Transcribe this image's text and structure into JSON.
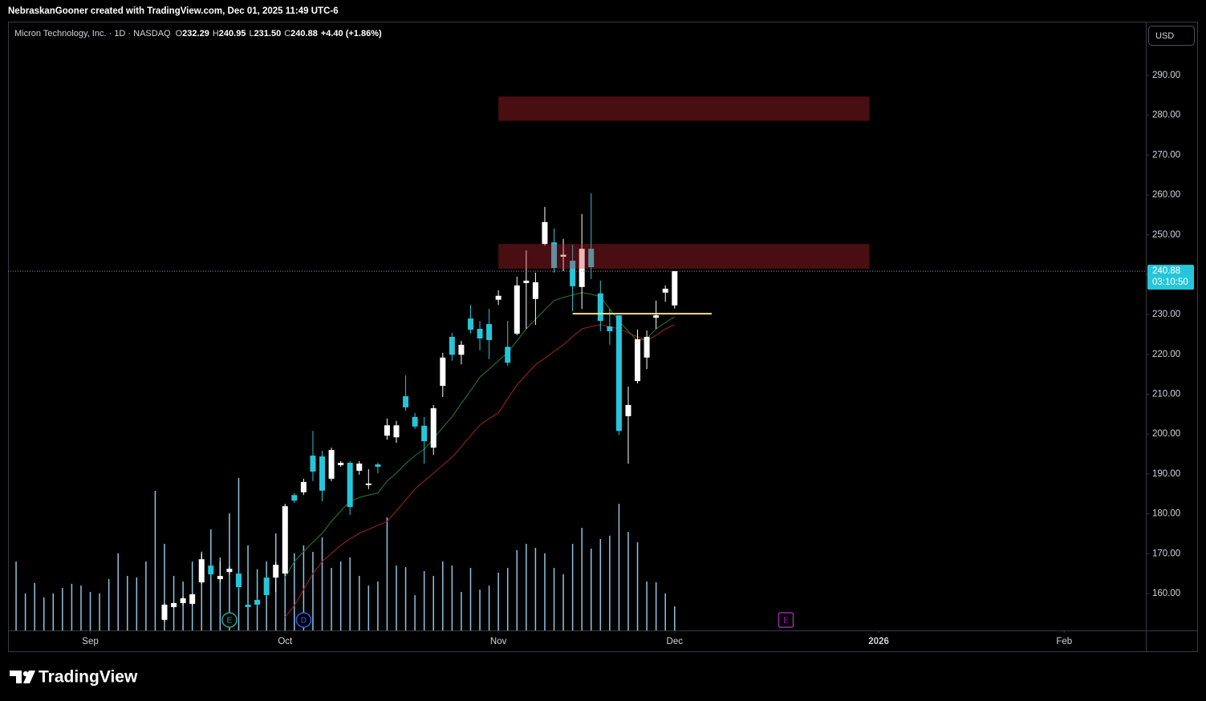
{
  "header": {
    "text": "NebraskanGooner created with TradingView.com, Dec 01, 2025 11:49 UTC-6"
  },
  "footer": {
    "brand": "TradingView"
  },
  "chart_data": {
    "type": "candlestick",
    "legend": {
      "name": "Micron Technology, Inc. · 1D · NASDAQ",
      "fields": [
        {
          "key": "O",
          "text": "232.29"
        },
        {
          "key": "H",
          "text": "240.95"
        },
        {
          "key": "L",
          "text": "231.50"
        },
        {
          "key": "C",
          "text": "240.88"
        }
      ],
      "change": "+4.40 (+1.86%)"
    },
    "currency": "USD",
    "up_color": "#ffffff",
    "down_color": "#26c6da",
    "xlim": [
      -0.87,
      121.8
    ],
    "xticks": [
      {
        "value": 8,
        "label": "Sep"
      },
      {
        "value": 29,
        "label": "Oct"
      },
      {
        "value": 52,
        "label": "Nov"
      },
      {
        "value": 71,
        "label": "Dec"
      },
      {
        "value": 93,
        "label": "2026"
      },
      {
        "value": 113,
        "label": "Feb"
      }
    ],
    "ylim": [
      150.74,
      303.28
    ],
    "yticks": [
      {
        "value": 160,
        "label": "160.00"
      },
      {
        "value": 170,
        "label": "170.00"
      },
      {
        "value": 180,
        "label": "180.00"
      },
      {
        "value": 190,
        "label": "190.00"
      },
      {
        "value": 200,
        "label": "200.00"
      },
      {
        "value": 210,
        "label": "210.00"
      },
      {
        "value": 220,
        "label": "220.00"
      },
      {
        "value": 230,
        "label": "230.00"
      },
      {
        "value": 240,
        "label": "240.00"
      },
      {
        "value": 250,
        "label": "250.00"
      },
      {
        "value": 260,
        "label": "260.00"
      },
      {
        "value": 270,
        "label": "270.00"
      },
      {
        "value": 280,
        "label": "280.00"
      },
      {
        "value": 290,
        "label": "290.00"
      }
    ],
    "grid": false,
    "open": [
      null,
      null,
      null,
      null,
      null,
      null,
      null,
      null,
      null,
      null,
      null,
      null,
      null,
      null,
      null,
      null,
      153.4,
      156.6,
      157.6,
      157.4,
      162.8,
      167.0,
      163.6,
      165.4,
      165.0,
      157.2,
      158.4,
      164.0,
      164.0,
      165.0,
      184.7,
      185.4,
      194.6,
      194.4,
      188.8,
      192.2,
      192.8,
      190.8,
      187.2,
      192.4,
      199.6,
      199.2,
      209.5,
      204.3,
      202.1,
      196.6,
      212.1,
      224.4,
      219.9,
      229.0,
      226.4,
      227.6,
      233.7,
      221.9,
      225.2,
      237.9,
      233.9,
      247.7,
      248.1,
      244.5,
      243.5,
      236.9,
      246.5,
      235.3,
      227.0,
      229.8,
      204.5,
      213.3,
      219.2,
      229.2,
      235.5,
      232.29
    ],
    "high": [
      null,
      null,
      null,
      null,
      null,
      null,
      null,
      null,
      null,
      null,
      null,
      null,
      null,
      null,
      null,
      null,
      157.6,
      157.8,
      159.2,
      160.0,
      170.5,
      168.0,
      168.0,
      166.8,
      165.6,
      157.6,
      159.0,
      165.0,
      168.0,
      182.5,
      185.2,
      188.8,
      200.8,
      195.8,
      196.6,
      193.2,
      193.2,
      193.2,
      191.2,
      192.8,
      203.9,
      203.3,
      214.7,
      205.3,
      204.3,
      207.3,
      220.4,
      225.4,
      223.4,
      232.4,
      228.4,
      231.4,
      236.1,
      228.4,
      239.5,
      246.1,
      240.5,
      257.0,
      251.6,
      249.0,
      247.5,
      255.2,
      260.4,
      238.5,
      231.4,
      229.8,
      211.9,
      226.2,
      226.0,
      233.5,
      237.3,
      240.95
    ],
    "low": [
      null,
      null,
      null,
      null,
      null,
      null,
      null,
      null,
      null,
      null,
      null,
      null,
      null,
      null,
      null,
      null,
      152.9,
      156.4,
      157.0,
      157.0,
      162.4,
      163.6,
      162.8,
      164.8,
      161.0,
      156.2,
      156.8,
      159.0,
      160.4,
      164.4,
      182.7,
      184.7,
      188.2,
      183.1,
      188.2,
      191.8,
      179.7,
      189.8,
      186.2,
      190.2,
      198.6,
      197.8,
      205.9,
      201.3,
      192.6,
      194.8,
      209.3,
      218.4,
      217.5,
      225.2,
      221.0,
      218.8,
      232.4,
      217.1,
      224.8,
      226.4,
      227.4,
      247.3,
      240.5,
      240.9,
      230.8,
      231.4,
      238.9,
      225.8,
      222.4,
      199.8,
      192.6,
      212.7,
      216.3,
      226.4,
      233.2,
      231.5
    ],
    "close": [
      null,
      null,
      null,
      null,
      null,
      null,
      null,
      null,
      null,
      null,
      null,
      null,
      null,
      null,
      null,
      null,
      157.2,
      157.6,
      158.8,
      159.8,
      168.6,
      164.8,
      164.4,
      166.2,
      161.6,
      156.6,
      157.2,
      159.6,
      167.2,
      181.9,
      183.3,
      188.0,
      190.6,
      185.8,
      196.0,
      192.8,
      181.7,
      192.6,
      187.6,
      191.8,
      202.2,
      202.2,
      206.7,
      201.9,
      198.2,
      206.5,
      219.2,
      219.9,
      222.4,
      226.2,
      224.0,
      223.6,
      234.7,
      217.9,
      237.3,
      238.5,
      238.1,
      253.2,
      241.7,
      245.0,
      237.1,
      246.5,
      241.9,
      228.4,
      225.8,
      200.8,
      207.3,
      223.8,
      224.4,
      229.8,
      236.48,
      240.88
    ],
    "volume": {
      "color": "#8fc3df",
      "vlim": [
        0,
        240
      ],
      "values": [
        27.2,
        14.6,
        18.7,
        13.0,
        14.6,
        16.8,
        18.4,
        17.7,
        15.2,
        14.6,
        20.3,
        30.4,
        21.5,
        20.9,
        27.2,
        55.1,
        34.2,
        21.5,
        19.3,
        27.2,
        30.4,
        39.9,
        28.8,
        46.2,
        60.2,
        33.6,
        24.1,
        27.2,
        38.3,
        41.5,
        30.4,
        33.6,
        31.0,
        36.7,
        24.7,
        27.2,
        28.8,
        21.5,
        17.7,
        19.3,
        44.6,
        25.6,
        25.0,
        13.9,
        23.4,
        21.5,
        27.2,
        25.6,
        15.2,
        24.7,
        16.1,
        17.7,
        22.8,
        24.7,
        31.7,
        34.2,
        32.6,
        30.4,
        24.7,
        22.2,
        34.2,
        40.5,
        32.3,
        36.1,
        37.4,
        50.0,
        38.9,
        34.8,
        19.3,
        19.0,
        14.6,
        9.5
      ]
    },
    "lines": [
      {
        "color": "#8b1e24",
        "values": [
          null,
          null,
          null,
          null,
          null,
          null,
          null,
          null,
          null,
          null,
          null,
          null,
          null,
          null,
          null,
          null,
          null,
          null,
          null,
          null,
          null,
          null,
          null,
          null,
          null,
          null,
          null,
          null,
          null,
          154.0,
          157.0,
          161.0,
          165.0,
          168.0,
          170.1,
          172.1,
          173.7,
          175.1,
          176.1,
          177.1,
          178.1,
          180.7,
          183.5,
          186.2,
          188.2,
          190.2,
          192.2,
          194.2,
          196.8,
          199.6,
          202.3,
          203.9,
          205.3,
          208.9,
          212.3,
          214.9,
          217.4,
          219.0,
          220.8,
          222.4,
          224.4,
          226.4,
          227.0,
          227.4,
          227.0,
          226.4,
          225.4,
          224.4,
          223.4,
          224.8,
          226.4,
          227.4
        ]
      },
      {
        "color": "#1f6b30",
        "values": [
          null,
          null,
          null,
          null,
          null,
          null,
          null,
          null,
          null,
          null,
          null,
          null,
          null,
          null,
          null,
          null,
          null,
          null,
          null,
          null,
          null,
          null,
          null,
          null,
          null,
          null,
          null,
          null,
          null,
          164.0,
          168.0,
          170.5,
          172.9,
          175.1,
          178.1,
          180.7,
          183.1,
          184.1,
          184.7,
          185.2,
          188.2,
          190.2,
          192.6,
          194.6,
          196.2,
          198.8,
          201.7,
          204.3,
          207.7,
          210.9,
          214.3,
          216.3,
          218.4,
          220.4,
          223.4,
          226.4,
          228.8,
          231.2,
          233.5,
          234.3,
          234.9,
          235.5,
          235.1,
          234.5,
          231.4,
          228.4,
          225.8,
          223.4,
          224.0,
          226.4,
          228.0,
          229.4
        ]
      }
    ],
    "zones": [
      {
        "low": 278.6,
        "high": 284.7,
        "start": 52,
        "end": 92,
        "color": "rgba(210,40,50,0.35)"
      },
      {
        "low": 241.5,
        "high": 247.7,
        "start": 52,
        "end": 92,
        "color": "rgba(210,40,50,0.35)"
      }
    ],
    "hlines": [
      {
        "value": 230.2,
        "start": 60,
        "end": 75,
        "color": "#f3e08a"
      }
    ],
    "last_price": {
      "value": 240.88,
      "label": "240.88",
      "color": "#26c6da"
    },
    "countdown": "03:10:50",
    "events": [
      {
        "label": "E",
        "x": 23,
        "color": "#26a69a"
      },
      {
        "label": "D",
        "x": 31,
        "color": "#2962ff"
      },
      {
        "label": "E",
        "x": 83,
        "color": "#9c27b0"
      }
    ]
  }
}
